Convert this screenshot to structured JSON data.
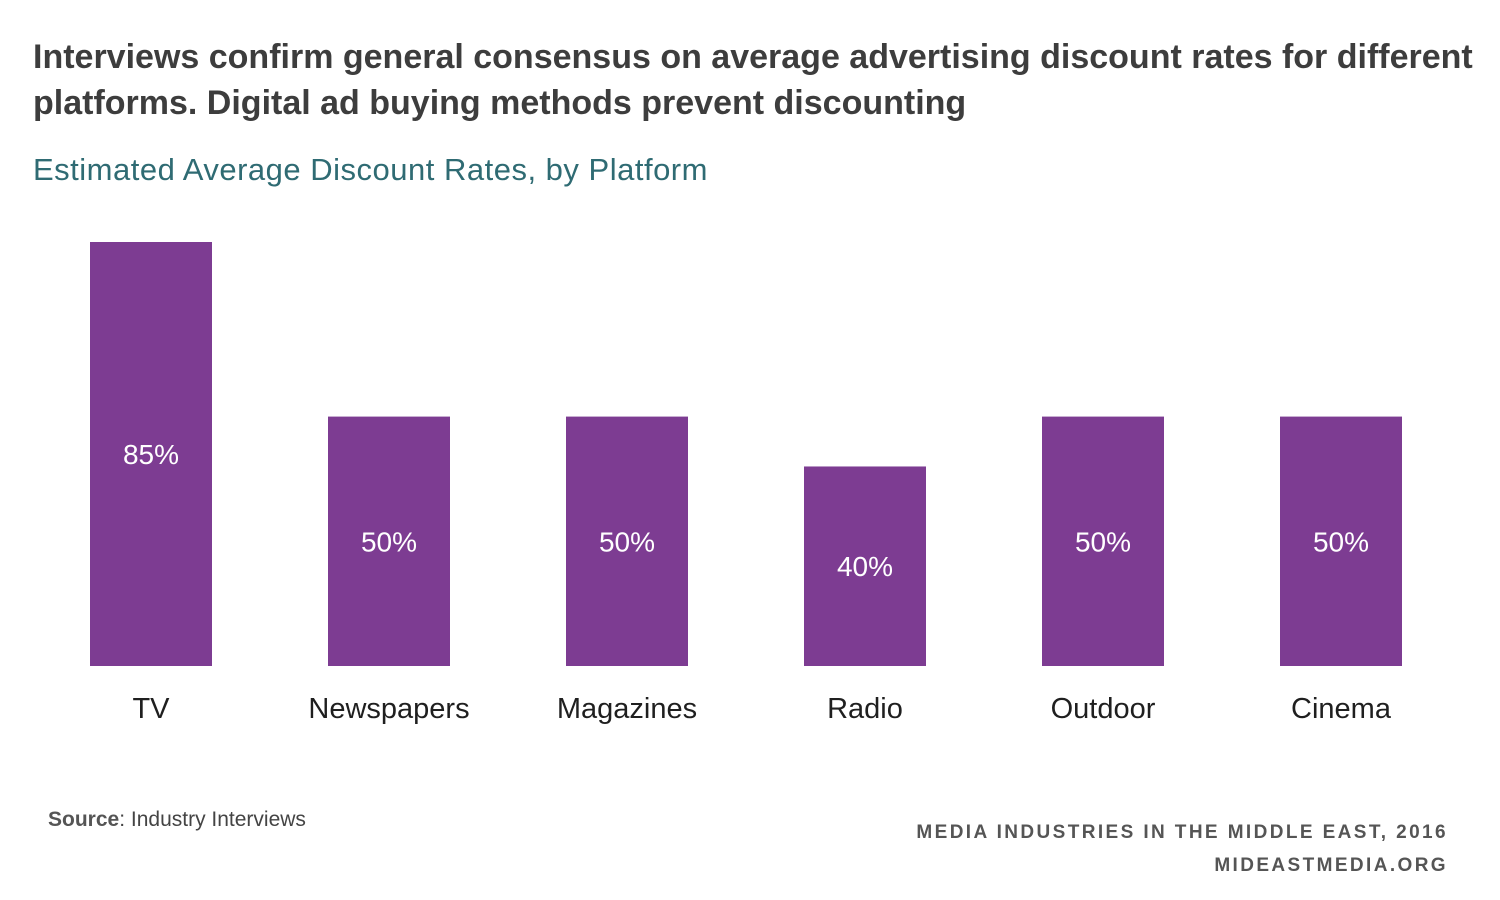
{
  "header": {
    "title": "Interviews confirm general consensus on average advertising discount rates for different platforms. Digital ad buying methods prevent discounting",
    "subtitle": "Estimated Average Discount Rates, by Platform"
  },
  "chart_data": {
    "type": "bar",
    "title": "Estimated Average Discount Rates, by Platform",
    "categories": [
      "TV",
      "Newspapers",
      "Magazines",
      "Radio",
      "Outdoor",
      "Cinema"
    ],
    "values": [
      85,
      50,
      50,
      40,
      50,
      50
    ],
    "value_labels": [
      "85%",
      "50%",
      "50%",
      "40%",
      "50%",
      "50%"
    ],
    "xlabel": "",
    "ylabel": "",
    "ylim": [
      0,
      85
    ],
    "grid": false,
    "legend": "none",
    "bar_color": "#7d3c92"
  },
  "footer": {
    "source_key": "Source",
    "source_text": ": Industry Interviews",
    "credit_line_1": "MEDIA INDUSTRIES IN THE MIDDLE EAST, 2016",
    "credit_line_2": "MIDEASTMEDIA.ORG"
  },
  "colors": {
    "title": "#3d3d3d",
    "subtitle": "#2f6b73",
    "bar": "#7d3c92",
    "bar_label": "#ffffff"
  }
}
